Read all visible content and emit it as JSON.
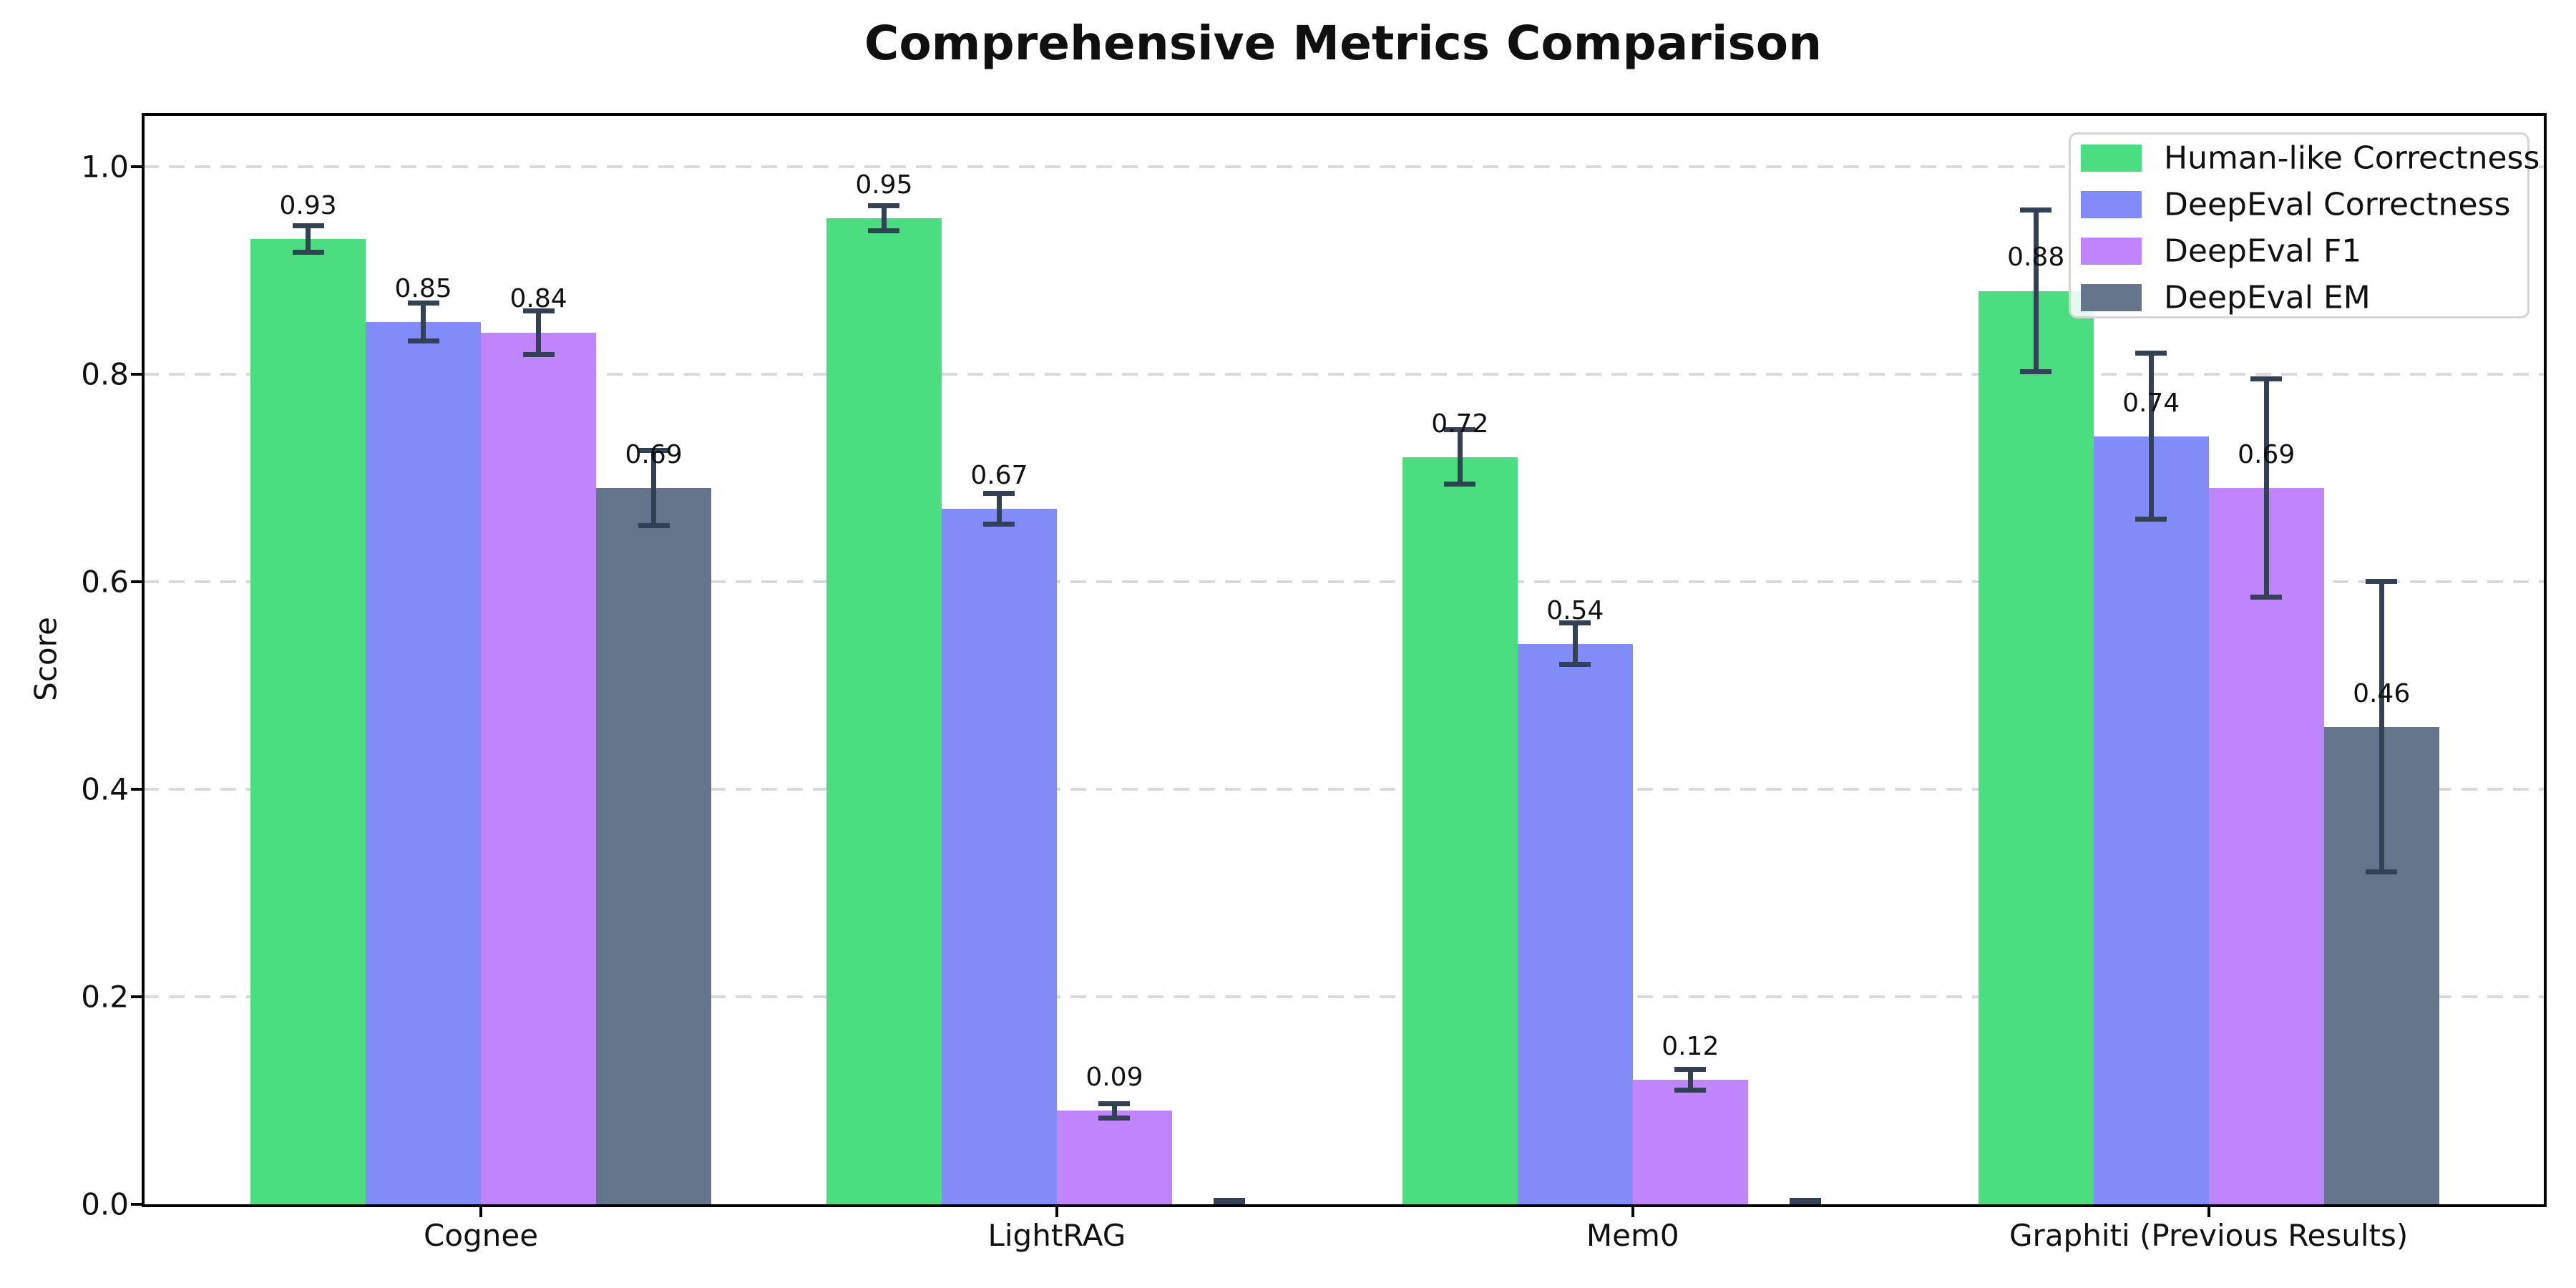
{
  "title": "Comprehensive Metrics Comparison",
  "colors": {
    "background": "#ffffff",
    "axes": "#000000",
    "grid": "#d9d9d9",
    "error_bar": "#334155",
    "legend_border": "#d4d4d4",
    "text": "#111111"
  },
  "chart_data": {
    "type": "bar",
    "title": "Comprehensive Metrics Comparison",
    "xlabel": "",
    "ylabel": "Score",
    "categories": [
      "Cognee",
      "LightRAG",
      "Mem0",
      "Graphiti (Previous Results)"
    ],
    "series": [
      {
        "name": "Human-like Correctness",
        "color": "#4ade80",
        "values": [
          0.93,
          0.95,
          0.72,
          0.88
        ],
        "errors": [
          0.013,
          0.012,
          0.026,
          0.078
        ],
        "labels": [
          "0.93",
          "0.95",
          "0.72",
          "0.88"
        ]
      },
      {
        "name": "DeepEval Correctness",
        "color": "#818cf8",
        "values": [
          0.85,
          0.67,
          0.54,
          0.74
        ],
        "errors": [
          0.018,
          0.015,
          0.02,
          0.08
        ],
        "labels": [
          "0.85",
          "0.67",
          "0.54",
          "0.74"
        ]
      },
      {
        "name": "DeepEval F1",
        "color": "#c084fc",
        "values": [
          0.84,
          0.09,
          0.12,
          0.69
        ],
        "errors": [
          0.021,
          0.007,
          0.01,
          0.105
        ],
        "labels": [
          "0.84",
          "0.09",
          "0.12",
          "0.69"
        ]
      },
      {
        "name": "DeepEval EM",
        "color": "#64748b",
        "values": [
          0.69,
          0.0,
          0.0,
          0.46
        ],
        "errors": [
          0.036,
          0.004,
          0.004,
          0.14
        ],
        "labels": [
          "0.69",
          "",
          "",
          "0.46"
        ]
      }
    ],
    "y_ticks": [
      "0.0",
      "0.2",
      "0.4",
      "0.6",
      "0.8",
      "1.0"
    ],
    "ylim": [
      0,
      1.05
    ],
    "grid": "horizontal dashed",
    "legend_position": "upper right"
  }
}
